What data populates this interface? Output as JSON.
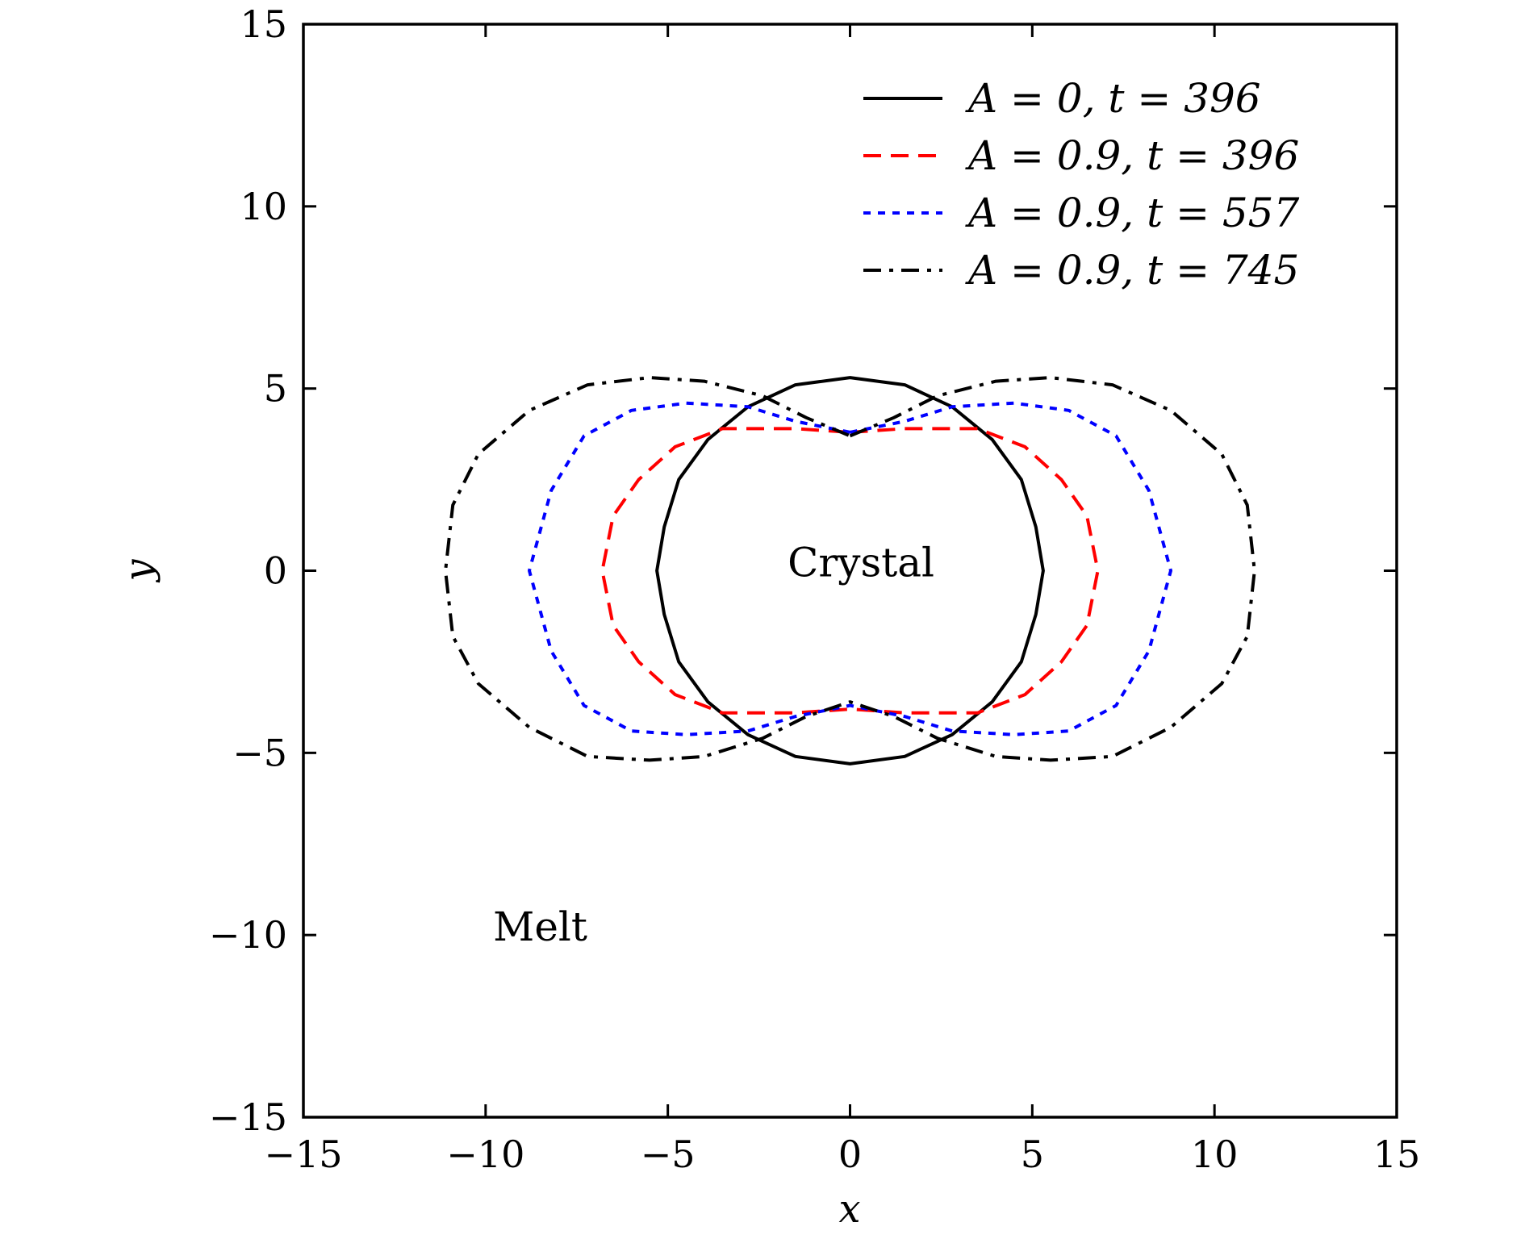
{
  "chart_data": {
    "type": "line",
    "xlabel": "x",
    "ylabel": "y",
    "xlim": [
      -15,
      15
    ],
    "ylim": [
      -15,
      15
    ],
    "xticks": [
      -15,
      -10,
      -5,
      0,
      5,
      10,
      15
    ],
    "yticks": [
      -15,
      -10,
      -5,
      0,
      5,
      10,
      15
    ],
    "xtick_labels": [
      "−15",
      "−10",
      "−5",
      "0",
      "5",
      "10",
      "15"
    ],
    "ytick_labels": [
      "−15",
      "−10",
      "−5",
      "0",
      "5",
      "10",
      "15"
    ],
    "grid": false,
    "legend_position": "top-right",
    "annotations": [
      {
        "text": "Crystal",
        "x": 0.3,
        "y": 0.2
      },
      {
        "text": "Melt",
        "x": -8.5,
        "y": -9.8
      }
    ],
    "series": [
      {
        "name": "A = 0,  t = 396",
        "color": "#000000",
        "style": "solid",
        "closed": true,
        "points": [
          [
            0,
            5.3
          ],
          [
            1.5,
            5.1
          ],
          [
            2.8,
            4.5
          ],
          [
            3.9,
            3.6
          ],
          [
            4.7,
            2.5
          ],
          [
            5.1,
            1.2
          ],
          [
            5.3,
            0
          ],
          [
            5.1,
            -1.2
          ],
          [
            4.7,
            -2.5
          ],
          [
            3.9,
            -3.6
          ],
          [
            2.8,
            -4.5
          ],
          [
            1.5,
            -5.1
          ],
          [
            0,
            -5.3
          ],
          [
            -1.5,
            -5.1
          ],
          [
            -2.8,
            -4.5
          ],
          [
            -3.9,
            -3.6
          ],
          [
            -4.7,
            -2.5
          ],
          [
            -5.1,
            -1.2
          ],
          [
            -5.3,
            0
          ],
          [
            -5.1,
            1.2
          ],
          [
            -4.7,
            2.5
          ],
          [
            -3.9,
            3.6
          ],
          [
            -2.8,
            4.5
          ],
          [
            -1.5,
            5.1
          ]
        ]
      },
      {
        "name": "A = 0.9,  t = 396",
        "color": "#ff0000",
        "style": "dashed",
        "closed": true,
        "points": [
          [
            0,
            3.8
          ],
          [
            1.5,
            3.9
          ],
          [
            3.5,
            3.9
          ],
          [
            4.8,
            3.4
          ],
          [
            5.8,
            2.5
          ],
          [
            6.5,
            1.5
          ],
          [
            6.8,
            0
          ],
          [
            6.5,
            -1.5
          ],
          [
            5.8,
            -2.5
          ],
          [
            4.8,
            -3.4
          ],
          [
            3.5,
            -3.9
          ],
          [
            1.5,
            -3.9
          ],
          [
            0,
            -3.8
          ],
          [
            -1.5,
            -3.9
          ],
          [
            -3.5,
            -3.9
          ],
          [
            -4.8,
            -3.4
          ],
          [
            -5.8,
            -2.5
          ],
          [
            -6.5,
            -1.5
          ],
          [
            -6.8,
            0
          ],
          [
            -6.5,
            1.5
          ],
          [
            -5.8,
            2.5
          ],
          [
            -4.8,
            3.4
          ],
          [
            -3.5,
            3.9
          ],
          [
            -1.5,
            3.9
          ]
        ]
      },
      {
        "name": "A = 0.9,  t = 557",
        "color": "#0000ff",
        "style": "dotted",
        "closed": true,
        "points": [
          [
            0,
            3.8
          ],
          [
            1.5,
            4.1
          ],
          [
            2.8,
            4.5
          ],
          [
            4.5,
            4.6
          ],
          [
            6.0,
            4.4
          ],
          [
            7.3,
            3.7
          ],
          [
            8.2,
            2.2
          ],
          [
            8.8,
            0
          ],
          [
            8.2,
            -2.2
          ],
          [
            7.3,
            -3.7
          ],
          [
            6.0,
            -4.4
          ],
          [
            4.5,
            -4.5
          ],
          [
            2.8,
            -4.4
          ],
          [
            1.5,
            -4.0
          ],
          [
            0,
            -3.7
          ],
          [
            -1.5,
            -4.0
          ],
          [
            -2.8,
            -4.4
          ],
          [
            -4.5,
            -4.5
          ],
          [
            -6.0,
            -4.4
          ],
          [
            -7.3,
            -3.7
          ],
          [
            -8.2,
            -2.2
          ],
          [
            -8.8,
            0
          ],
          [
            -8.2,
            2.2
          ],
          [
            -7.3,
            3.7
          ],
          [
            -6.0,
            4.4
          ],
          [
            -4.5,
            4.6
          ],
          [
            -2.8,
            4.5
          ],
          [
            -1.5,
            4.1
          ]
        ]
      },
      {
        "name": "A = 0.9,  t = 745",
        "color": "#000000",
        "style": "dashdot",
        "closed": true,
        "points": [
          [
            0,
            3.7
          ],
          [
            1.2,
            4.2
          ],
          [
            2.4,
            4.8
          ],
          [
            4.0,
            5.2
          ],
          [
            5.5,
            5.3
          ],
          [
            7.2,
            5.1
          ],
          [
            8.8,
            4.4
          ],
          [
            10.2,
            3.2
          ],
          [
            10.9,
            1.8
          ],
          [
            11.1,
            0
          ],
          [
            10.9,
            -1.8
          ],
          [
            10.2,
            -3.1
          ],
          [
            8.8,
            -4.3
          ],
          [
            7.2,
            -5.1
          ],
          [
            5.5,
            -5.2
          ],
          [
            4.0,
            -5.1
          ],
          [
            2.4,
            -4.6
          ],
          [
            1.2,
            -4.0
          ],
          [
            0,
            -3.6
          ],
          [
            -1.2,
            -4.0
          ],
          [
            -2.4,
            -4.6
          ],
          [
            -4.0,
            -5.1
          ],
          [
            -5.5,
            -5.2
          ],
          [
            -7.2,
            -5.1
          ],
          [
            -8.8,
            -4.3
          ],
          [
            -10.2,
            -3.1
          ],
          [
            -10.9,
            -1.8
          ],
          [
            -11.1,
            0
          ],
          [
            -10.9,
            1.8
          ],
          [
            -10.2,
            3.2
          ],
          [
            -8.8,
            4.4
          ],
          [
            -7.2,
            5.1
          ],
          [
            -5.5,
            5.3
          ],
          [
            -4.0,
            5.2
          ],
          [
            -2.4,
            4.8
          ],
          [
            -1.2,
            4.2
          ]
        ]
      }
    ]
  }
}
